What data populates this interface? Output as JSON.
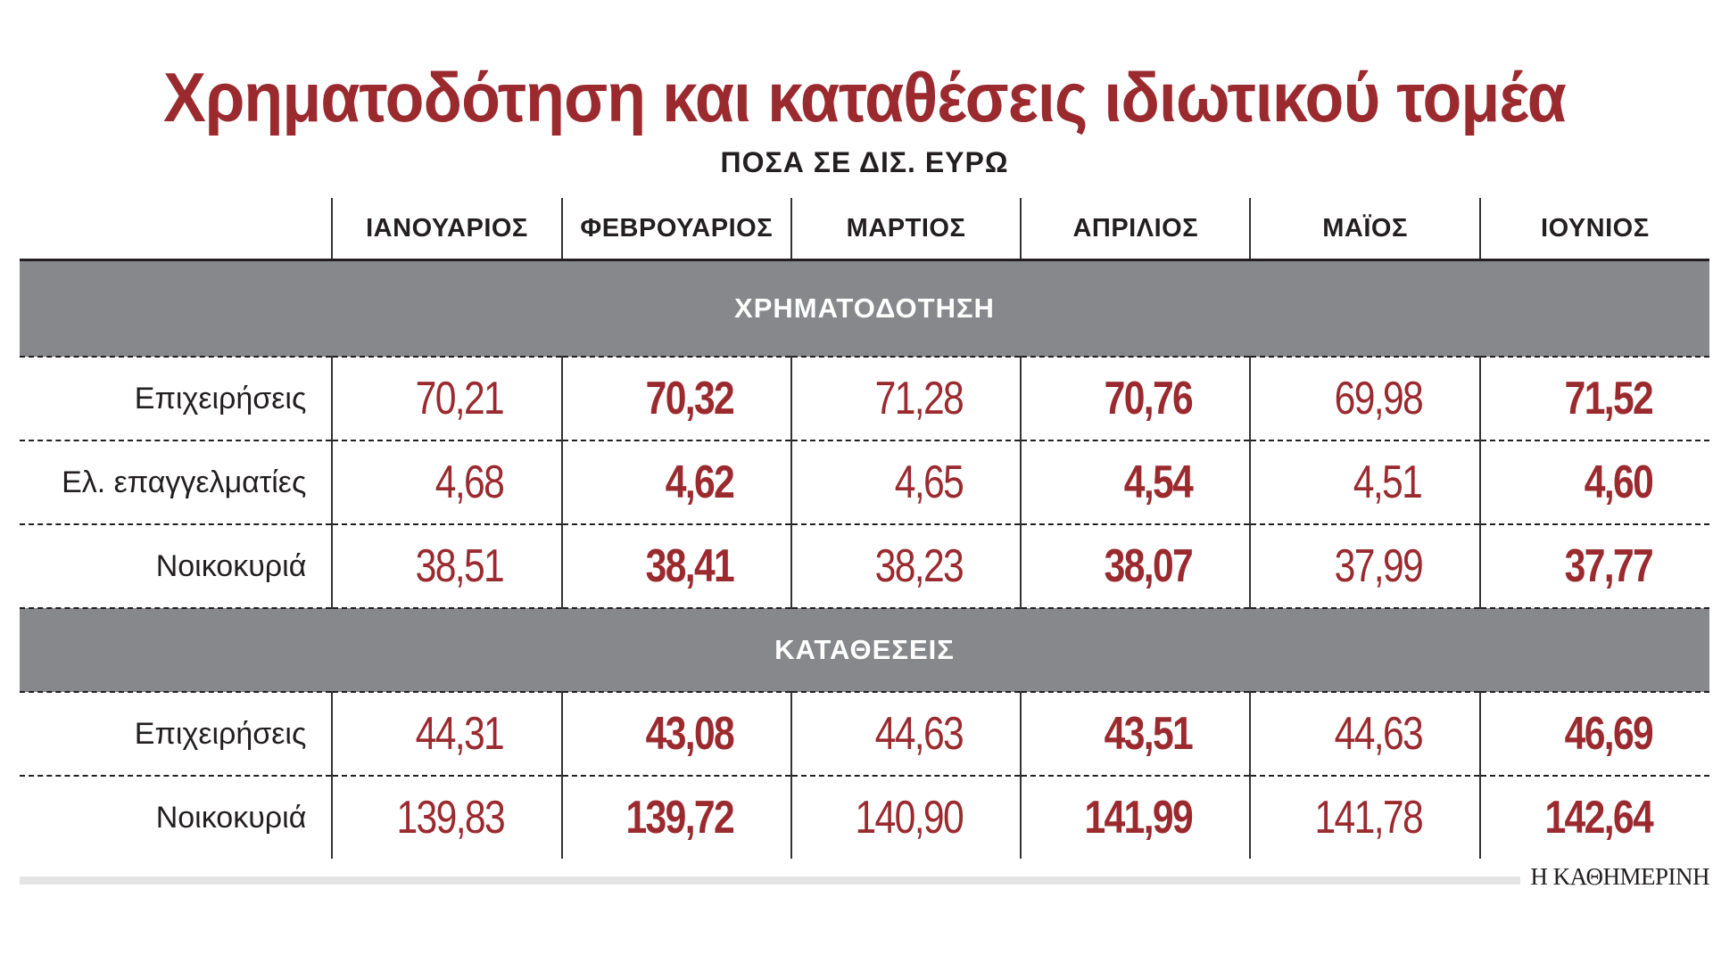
{
  "title": "Χρηματοδότηση και καταθέσεις ιδιωτικού τομέα",
  "subtitle": "ΠΟΣΑ ΣΕ ΔΙΣ. ΕΥΡΩ",
  "source": "Η ΚΑΘΗΜΕΡΙΝΗ",
  "colors": {
    "accent": "#9b2a2f",
    "section_bg": "#87888c",
    "text": "#231f20"
  },
  "chart_data": {
    "type": "table",
    "columns": [
      "ΙΑΝΟΥΑΡΙΟΣ",
      "ΦΕΒΡΟΥΑΡΙΟΣ",
      "ΜΑΡΤΙΟΣ",
      "ΑΠΡΙΛΙΟΣ",
      "ΜΑΪΟΣ",
      "ΙΟΥΝΙΟΣ"
    ],
    "sections": [
      {
        "name": "ΧΡΗΜΑΤΟΔΟΤΗΣΗ",
        "rows": [
          {
            "label": "Επιχειρήσεις",
            "values": [
              "70,21",
              "70,32",
              "71,28",
              "70,76",
              "69,98",
              "71,52"
            ]
          },
          {
            "label": "Ελ. επαγγελματίες",
            "values": [
              "4,68",
              "4,62",
              "4,65",
              "4,54",
              "4,51",
              "4,60"
            ]
          },
          {
            "label": "Νοικοκυριά",
            "values": [
              "38,51",
              "38,41",
              "38,23",
              "38,07",
              "37,99",
              "37,77"
            ]
          }
        ]
      },
      {
        "name": "ΚΑΤΑΘΕΣΕΙΣ",
        "rows": [
          {
            "label": "Επιχειρήσεις",
            "values": [
              "44,31",
              "43,08",
              "44,63",
              "43,51",
              "44,63",
              "46,69"
            ]
          },
          {
            "label": "Νοικοκυριά",
            "values": [
              "139,83",
              "139,72",
              "140,90",
              "141,99",
              "141,78",
              "142,64"
            ]
          }
        ]
      }
    ]
  }
}
